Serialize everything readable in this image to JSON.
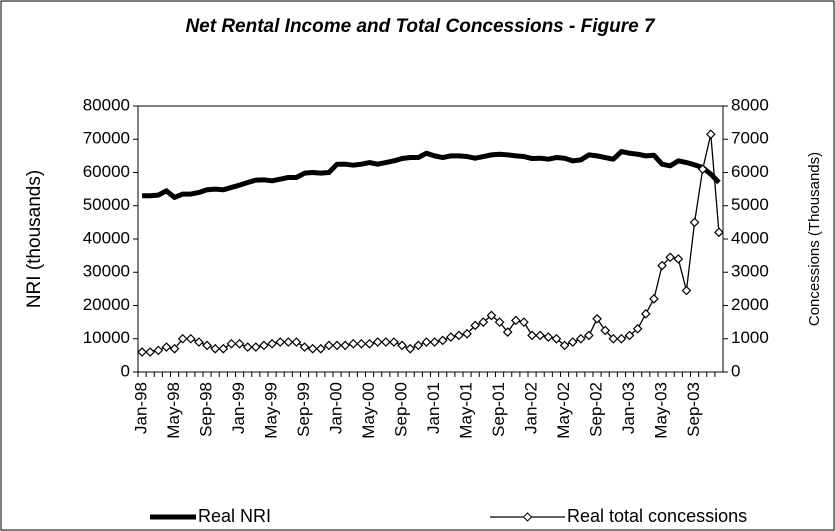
{
  "chart_data": {
    "type": "line",
    "title": "Net Rental Income and Total Concessions - Figure 7",
    "y_label": "NRI (thousands)",
    "y2_label": "Concessions (Thousands)",
    "categories": [
      "Jan-98",
      null,
      null,
      null,
      "May-98",
      null,
      null,
      null,
      "Sep-98",
      null,
      null,
      null,
      "Jan-99",
      null,
      null,
      null,
      "May-99",
      null,
      null,
      null,
      "Sep-99",
      null,
      null,
      null,
      "Jan-00",
      null,
      null,
      null,
      "May-00",
      null,
      null,
      null,
      "Sep-00",
      null,
      null,
      null,
      "Jan-01",
      null,
      null,
      null,
      "May-01",
      null,
      null,
      null,
      "Sep-01",
      null,
      null,
      null,
      "Jan-02",
      null,
      null,
      null,
      "May-02",
      null,
      null,
      null,
      "Sep-02",
      null,
      null,
      null,
      "Jan-03",
      null,
      null,
      null,
      "May-03",
      null,
      null,
      null,
      "Sep-03",
      null,
      null,
      null
    ],
    "series": [
      {
        "name": "Real NRI",
        "color": "#000000",
        "axis": "y",
        "values": [
          53000,
          53000,
          53200,
          54500,
          52500,
          53500,
          53500,
          54000,
          54800,
          55000,
          54800,
          55500,
          56200,
          57000,
          57700,
          57800,
          57500,
          58000,
          58500,
          58500,
          59800,
          60000,
          59800,
          60000,
          62500,
          62500,
          62200,
          62500,
          63000,
          62500,
          63000,
          63500,
          64200,
          64500,
          64500,
          65800,
          65000,
          64500,
          65000,
          65000,
          64800,
          64300,
          64800,
          65300,
          65500,
          65300,
          65000,
          64800,
          64200,
          64300,
          64000,
          64500,
          64300,
          63500,
          63800,
          65300,
          65000,
          64500,
          64000,
          66300,
          65800,
          65500,
          65000,
          65200,
          62500,
          62000,
          63500,
          63000,
          62300,
          61500,
          59500,
          57000
        ]
      },
      {
        "name": "Real total concessions",
        "color": "#000000",
        "axis": "y2",
        "values": [
          600,
          600,
          650,
          750,
          700,
          1000,
          1000,
          900,
          800,
          700,
          700,
          850,
          850,
          750,
          750,
          800,
          850,
          900,
          900,
          900,
          750,
          700,
          700,
          800,
          800,
          800,
          850,
          850,
          850,
          900,
          900,
          900,
          800,
          700,
          800,
          900,
          900,
          950,
          1050,
          1100,
          1150,
          1400,
          1500,
          1700,
          1500,
          1200,
          1550,
          1500,
          1100,
          1100,
          1050,
          1000,
          800,
          900,
          1000,
          1100,
          1600,
          1250,
          1000,
          1000,
          1100,
          1300,
          1750,
          2200,
          3200,
          3450,
          3400,
          2450,
          4500,
          6100,
          7150,
          4200
        ]
      }
    ],
    "ylim": [
      0,
      80000
    ],
    "yticks": [
      0,
      10000,
      20000,
      30000,
      40000,
      50000,
      60000,
      70000,
      80000
    ],
    "y2lim": [
      0,
      8000
    ],
    "y2ticks": [
      0,
      1000,
      2000,
      3000,
      4000,
      5000,
      6000,
      7000,
      8000
    ],
    "legend": "bottom"
  }
}
